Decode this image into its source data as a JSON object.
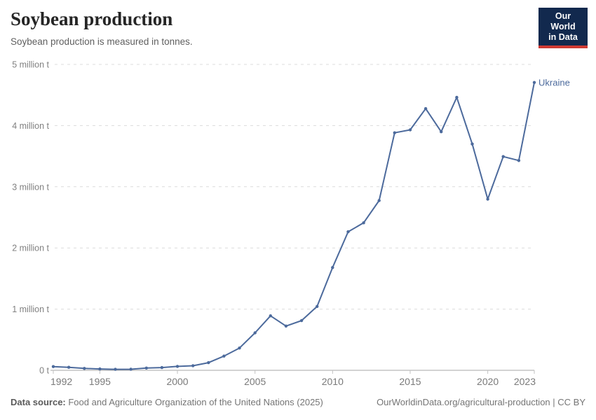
{
  "header": {
    "title": "Soybean production",
    "subtitle": "Soybean production is measured in tonnes.",
    "logo_line1": "Our World",
    "logo_line2": "in Data"
  },
  "chart_data": {
    "type": "line",
    "title": "Soybean production",
    "unit": "tonnes",
    "xlabel": "",
    "ylabel": "",
    "xlim": [
      1992,
      2023
    ],
    "ylim": [
      0,
      5000000
    ],
    "grid": "horizontal-dashed",
    "legend_position": "end-of-line-label",
    "x_ticks": [
      1992,
      1995,
      2000,
      2005,
      2010,
      2015,
      2020,
      2023
    ],
    "y_ticks": [
      {
        "value": 0,
        "label": "0 t"
      },
      {
        "value": 1000000,
        "label": "1 million t"
      },
      {
        "value": 2000000,
        "label": "2 million t"
      },
      {
        "value": 3000000,
        "label": "3 million t"
      },
      {
        "value": 4000000,
        "label": "4 million t"
      },
      {
        "value": 5000000,
        "label": "5 million t"
      }
    ],
    "series": [
      {
        "name": "Ukraine",
        "color": "#4c6a9c",
        "x": [
          1992,
          1993,
          1994,
          1995,
          1996,
          1997,
          1998,
          1999,
          2000,
          2001,
          2002,
          2003,
          2004,
          2005,
          2006,
          2007,
          2008,
          2009,
          2010,
          2011,
          2012,
          2013,
          2014,
          2015,
          2016,
          2017,
          2018,
          2019,
          2020,
          2021,
          2022,
          2023
        ],
        "values": [
          60600,
          49600,
          31100,
          22300,
          15900,
          17000,
          36700,
          44700,
          64400,
          73900,
          124700,
          231800,
          363700,
          612600,
          889600,
          722600,
          812800,
          1043500,
          1680200,
          2264400,
          2410200,
          2774300,
          3881900,
          3930600,
          4277000,
          3899400,
          4460800,
          3698700,
          2797700,
          3493300,
          3428500,
          4704700
        ]
      }
    ]
  },
  "footer": {
    "datasource_label": "Data source:",
    "datasource_text": " Food and Agriculture Organization of the United Nations (2025)",
    "rights": "OurWorldinData.org/agricultural-production | CC BY"
  }
}
